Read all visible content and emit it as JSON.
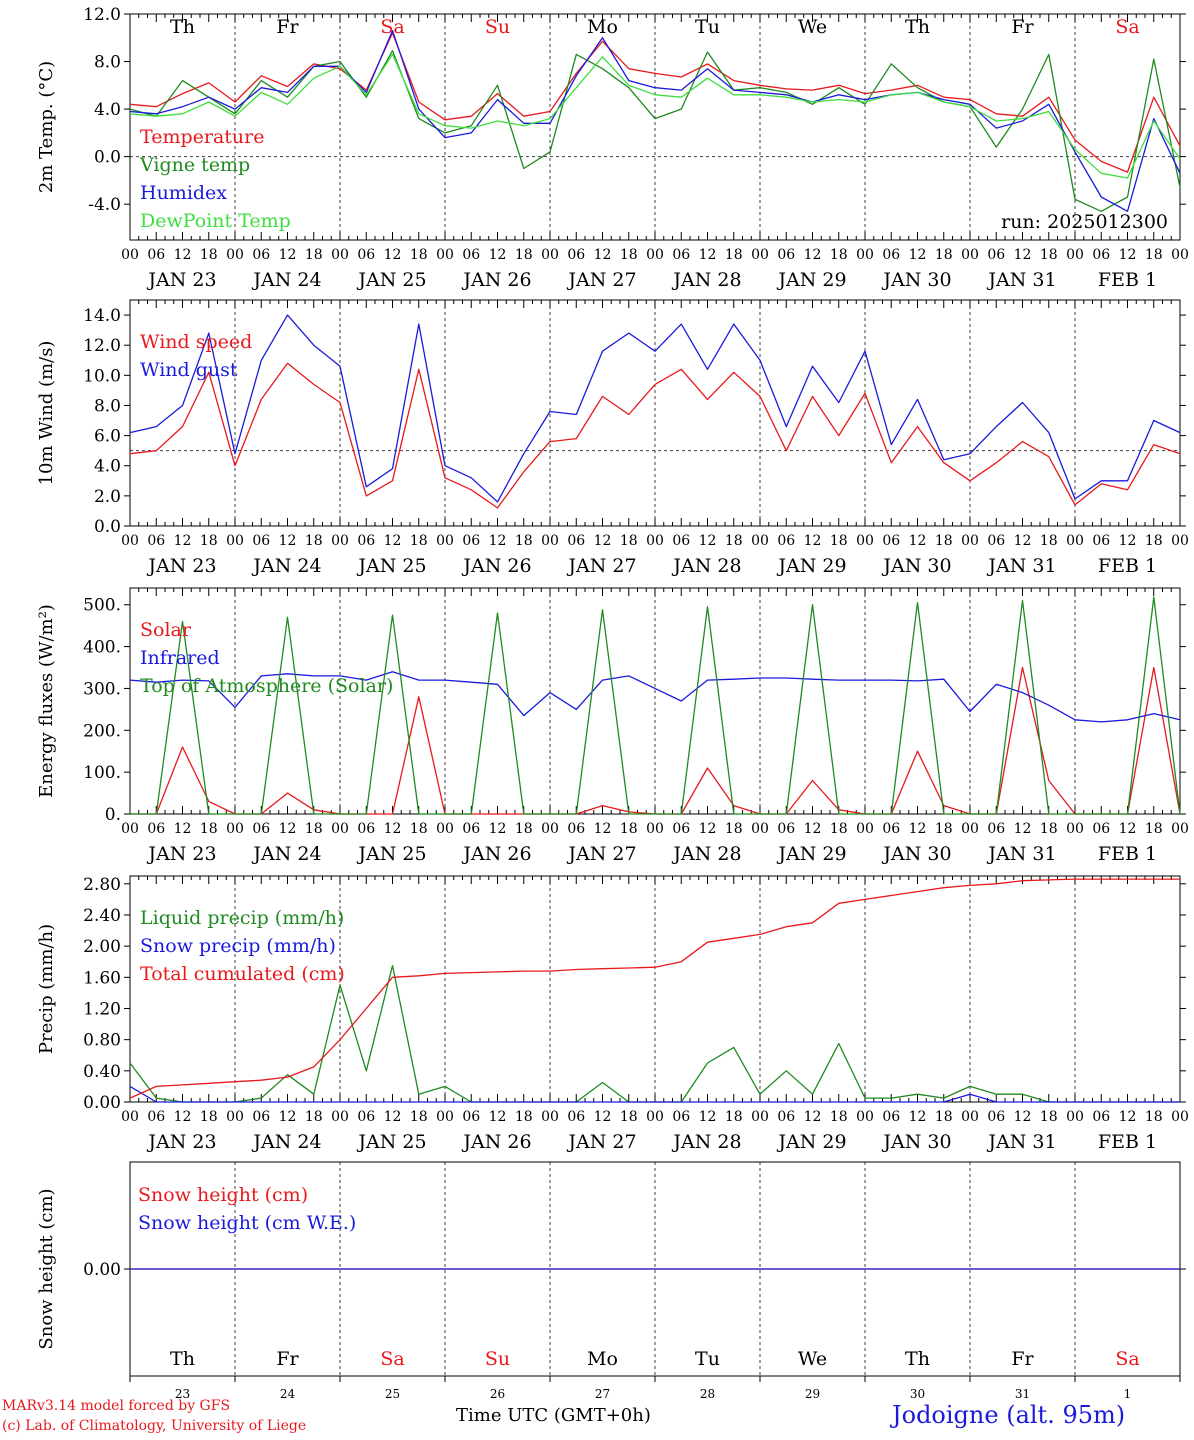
{
  "colors": {
    "red": "#e8191c",
    "green": "#1f8a1f",
    "blue": "#1a1add",
    "light_green": "#3ede3e",
    "black": "#000000"
  },
  "time_axis": {
    "hour_labels": [
      "00",
      "06",
      "12",
      "18",
      "00",
      "06",
      "12",
      "18",
      "00",
      "06",
      "12",
      "18",
      "00",
      "06",
      "12",
      "18",
      "00",
      "06",
      "12",
      "18",
      "00",
      "06",
      "12",
      "18",
      "00",
      "06",
      "12",
      "18",
      "00",
      "06",
      "12",
      "18",
      "00",
      "06",
      "12",
      "18",
      "00",
      "06",
      "12",
      "18",
      "00"
    ],
    "date_labels": [
      "JAN 23",
      "JAN 24",
      "JAN 25",
      "JAN 26",
      "JAN 27",
      "JAN 28",
      "JAN 29",
      "JAN 30",
      "JAN 31",
      "FEB  1"
    ],
    "day_names": [
      "Th",
      "Fr",
      "Sa",
      "Su",
      "Mo",
      "Tu",
      "We",
      "Th",
      "Fr",
      "Sa"
    ],
    "weekend_flags": [
      false,
      false,
      true,
      true,
      false,
      false,
      false,
      false,
      false,
      true
    ],
    "day_numbers": [
      "23",
      "24",
      "25",
      "26",
      "27",
      "28",
      "29",
      "30",
      "31",
      "1"
    ],
    "bottom_label": "Time UTC (GMT+0h)"
  },
  "chart_data": [
    {
      "type": "line",
      "ylabel": "2m Temp. (°C)",
      "ylim": [
        -5.5,
        12
      ],
      "ytick_labels": [
        "12.0",
        "8.0",
        "4.0",
        "0.0",
        "-4.0"
      ],
      "ytick_values": [
        12,
        8,
        4,
        0,
        -4
      ],
      "dashed_reference": 0,
      "annotation": "run: 2025012300",
      "x_hours": [
        0,
        6,
        12,
        18,
        24,
        30,
        36,
        42,
        48,
        54,
        60,
        66,
        72,
        78,
        84,
        90,
        96,
        102,
        108,
        114,
        120,
        126,
        132,
        138,
        144,
        150,
        156,
        162,
        168,
        174,
        180,
        186,
        192,
        198,
        204,
        210,
        216,
        222,
        228,
        234,
        240
      ],
      "series": [
        {
          "name": "Temperature",
          "color": "red",
          "values": [
            4.4,
            4.2,
            5.3,
            6.2,
            4.6,
            6.8,
            5.9,
            7.8,
            7.4,
            5.6,
            10.4,
            4.6,
            3.1,
            3.4,
            5.3,
            3.4,
            3.8,
            7.0,
            9.7,
            7.4,
            7.0,
            6.7,
            7.8,
            6.4,
            6.0,
            5.7,
            5.6,
            6.0,
            5.3,
            5.6,
            6.0,
            5.0,
            4.8,
            3.6,
            3.4,
            5.0,
            1.4,
            -0.4,
            -1.3,
            5.0,
            0.9
          ]
        },
        {
          "name": "Vigne temp",
          "color": "green",
          "values": [
            4.0,
            3.4,
            6.4,
            5.0,
            3.6,
            6.4,
            5.0,
            7.6,
            8.0,
            5.0,
            8.9,
            3.2,
            2.0,
            2.6,
            6.0,
            -1.0,
            0.4,
            8.6,
            7.4,
            5.8,
            3.2,
            4.0,
            8.8,
            5.6,
            5.8,
            5.4,
            4.4,
            5.8,
            4.4,
            7.8,
            5.8,
            4.6,
            4.2,
            0.8,
            4.0,
            8.6,
            -3.6,
            -4.6,
            -3.4,
            8.2,
            -2.6
          ]
        },
        {
          "name": "Humidex",
          "color": "blue",
          "values": [
            3.8,
            3.6,
            4.2,
            5.0,
            4.0,
            5.8,
            5.4,
            7.6,
            7.6,
            5.4,
            10.6,
            4.0,
            1.6,
            2.0,
            4.8,
            2.8,
            2.8,
            6.8,
            10.0,
            6.4,
            5.8,
            5.6,
            7.4,
            5.6,
            5.4,
            5.2,
            4.6,
            5.2,
            4.8,
            5.2,
            5.4,
            4.8,
            4.4,
            2.4,
            3.0,
            4.4,
            0.4,
            -3.4,
            -4.6,
            3.2,
            -1.4
          ]
        },
        {
          "name": "DewPoint Temp",
          "color": "light_green",
          "values": [
            3.6,
            3.4,
            3.6,
            4.6,
            3.4,
            5.4,
            4.4,
            6.6,
            7.6,
            5.2,
            8.6,
            3.6,
            2.6,
            2.4,
            3.0,
            2.6,
            3.2,
            5.8,
            8.4,
            6.0,
            5.2,
            5.0,
            6.6,
            5.2,
            5.2,
            5.0,
            4.6,
            4.8,
            4.6,
            5.2,
            5.4,
            4.6,
            4.2,
            3.0,
            3.2,
            3.8,
            0.6,
            -1.4,
            -1.8,
            3.0,
            -0.2
          ]
        }
      ]
    },
    {
      "type": "line",
      "ylabel": "10m Wind (m/s)",
      "ylim": [
        0,
        15
      ],
      "ytick_labels": [
        "14.0",
        "12.0",
        "10.0",
        "8.0",
        "6.0",
        "4.0",
        "2.0",
        "0.0"
      ],
      "ytick_values": [
        14,
        12,
        10,
        8,
        6,
        4,
        2,
        0
      ],
      "dashed_reference": 5,
      "x_hours": [
        0,
        6,
        12,
        18,
        24,
        30,
        36,
        42,
        48,
        54,
        60,
        66,
        72,
        78,
        84,
        90,
        96,
        102,
        108,
        114,
        120,
        126,
        132,
        138,
        144,
        150,
        156,
        162,
        168,
        174,
        180,
        186,
        192,
        198,
        204,
        210,
        216,
        222,
        228,
        234,
        240
      ],
      "series": [
        {
          "name": "Wind speed",
          "color": "red",
          "values": [
            4.8,
            5.0,
            6.6,
            10.2,
            4.0,
            8.4,
            10.8,
            9.4,
            8.2,
            2.0,
            3.0,
            10.4,
            3.2,
            2.4,
            1.2,
            3.6,
            5.6,
            5.8,
            8.6,
            7.4,
            9.4,
            10.4,
            8.4,
            10.2,
            8.6,
            5.0,
            8.6,
            6.0,
            8.8,
            4.2,
            6.6,
            4.2,
            3.0,
            4.2,
            5.6,
            4.6,
            1.4,
            2.8,
            2.4,
            5.4,
            4.8
          ]
        },
        {
          "name": "Wind gust",
          "color": "blue",
          "values": [
            6.2,
            6.6,
            8.0,
            12.8,
            4.8,
            11.0,
            14.0,
            12.0,
            10.6,
            2.6,
            3.8,
            13.4,
            4.0,
            3.2,
            1.6,
            4.8,
            7.6,
            7.4,
            11.6,
            12.8,
            11.6,
            13.4,
            10.4,
            13.4,
            11.0,
            6.6,
            10.6,
            8.2,
            11.6,
            5.4,
            8.4,
            4.4,
            4.8,
            6.6,
            8.2,
            6.2,
            1.8,
            3.0,
            3.0,
            7.0,
            6.2
          ]
        }
      ]
    },
    {
      "type": "line",
      "ylabel": "Energy fluxes (W/m²)",
      "ylim": [
        0,
        540
      ],
      "ytick_labels": [
        "500.",
        "400.",
        "300.",
        "200.",
        "100.",
        "0."
      ],
      "ytick_values": [
        500,
        400,
        300,
        200,
        100,
        0
      ],
      "x_hours": [
        0,
        6,
        12,
        18,
        24,
        30,
        36,
        42,
        48,
        54,
        60,
        66,
        72,
        78,
        84,
        90,
        96,
        102,
        108,
        114,
        120,
        126,
        132,
        138,
        144,
        150,
        156,
        162,
        168,
        174,
        180,
        186,
        192,
        198,
        204,
        210,
        216,
        222,
        228,
        234,
        240
      ],
      "series": [
        {
          "name": "Solar",
          "color": "red",
          "values": [
            0,
            0,
            160,
            30,
            0,
            0,
            50,
            10,
            0,
            0,
            0,
            280,
            0,
            0,
            0,
            0,
            0,
            0,
            20,
            5,
            0,
            0,
            110,
            20,
            0,
            0,
            80,
            10,
            0,
            0,
            150,
            20,
            0,
            0,
            350,
            80,
            0,
            0,
            0,
            350,
            0
          ]
        },
        {
          "name": "Infrared",
          "color": "blue",
          "values": [
            320,
            315,
            320,
            318,
            255,
            330,
            335,
            330,
            330,
            320,
            340,
            320,
            320,
            315,
            310,
            235,
            290,
            250,
            320,
            330,
            300,
            270,
            320,
            322,
            325,
            325,
            322,
            320,
            320,
            320,
            318,
            322,
            245,
            310,
            290,
            260,
            225,
            220,
            225,
            240,
            225
          ]
        },
        {
          "name": "Top of Atmosphere (Solar)",
          "color": "green",
          "values": [
            0,
            0,
            460,
            0,
            0,
            0,
            470,
            0,
            0,
            0,
            475,
            0,
            0,
            0,
            480,
            0,
            0,
            0,
            488,
            0,
            0,
            0,
            495,
            0,
            0,
            0,
            500,
            0,
            0,
            0,
            505,
            0,
            0,
            0,
            510,
            0,
            0,
            0,
            0,
            518,
            0
          ]
        }
      ]
    },
    {
      "type": "line",
      "ylabel": "Precip (mm/h)",
      "ylim": [
        0,
        2.9
      ],
      "ytick_labels": [
        "2.80",
        "2.40",
        "2.00",
        "1.60",
        "1.20",
        "0.80",
        "0.40",
        "0.00"
      ],
      "ytick_values": [
        2.8,
        2.4,
        2.0,
        1.6,
        1.2,
        0.8,
        0.4,
        0.0
      ],
      "x_hours": [
        0,
        6,
        12,
        18,
        24,
        30,
        36,
        42,
        48,
        54,
        60,
        66,
        72,
        78,
        84,
        90,
        96,
        102,
        108,
        114,
        120,
        126,
        132,
        138,
        144,
        150,
        156,
        162,
        168,
        174,
        180,
        186,
        192,
        198,
        204,
        210,
        216,
        222,
        228,
        234,
        240
      ],
      "series": [
        {
          "name": "Liquid precip (mm/h)",
          "color": "green",
          "values": [
            0.5,
            0.05,
            0,
            0,
            0,
            0.05,
            0.35,
            0.1,
            1.5,
            0.4,
            1.75,
            0.1,
            0.2,
            0,
            0,
            0,
            0,
            0,
            0.25,
            0,
            0,
            0,
            0.5,
            0.7,
            0.1,
            0.4,
            0.1,
            0.75,
            0.05,
            0.05,
            0.1,
            0.05,
            0.2,
            0.1,
            0.1,
            0,
            0,
            0,
            0,
            0,
            0
          ]
        },
        {
          "name": "Snow precip (mm/h)",
          "color": "blue",
          "values": [
            0.2,
            0,
            0,
            0,
            0,
            0,
            0,
            0,
            0,
            0,
            0,
            0,
            0,
            0,
            0,
            0,
            0,
            0,
            0,
            0,
            0,
            0,
            0,
            0,
            0,
            0,
            0,
            0,
            0,
            0,
            0,
            0,
            0.1,
            0,
            0,
            0,
            0,
            0,
            0,
            0,
            0
          ]
        },
        {
          "name": "Total cumulated (cm)",
          "color": "red",
          "values": [
            0.05,
            0.2,
            0.22,
            0.24,
            0.26,
            0.28,
            0.32,
            0.45,
            0.8,
            1.2,
            1.6,
            1.62,
            1.65,
            1.66,
            1.67,
            1.68,
            1.68,
            1.7,
            1.71,
            1.72,
            1.73,
            1.8,
            2.05,
            2.1,
            2.15,
            2.25,
            2.3,
            2.55,
            2.6,
            2.65,
            2.7,
            2.75,
            2.78,
            2.8,
            2.84,
            2.85,
            2.86,
            2.86,
            2.86,
            2.86,
            2.86
          ]
        }
      ]
    },
    {
      "type": "line",
      "ylabel": "Snow height (cm)",
      "ylim": [
        -1,
        1
      ],
      "ytick_labels": [
        "0.00"
      ],
      "ytick_values": [
        0
      ],
      "x_hours": [
        0,
        240
      ],
      "series": [
        {
          "name": "Snow height (cm)",
          "color": "red",
          "values": [
            0,
            0
          ]
        },
        {
          "name": "Snow height (cm W.E.)",
          "color": "blue",
          "values": [
            0,
            0
          ]
        }
      ]
    }
  ],
  "footer": {
    "credit_line1": "MARv3.14 model forced by GFS",
    "credit_line2": "(c) Lab. of Climatology, University of Liege",
    "time_label": "Time UTC (GMT+0h)",
    "location": "Jodoigne (alt. 95m)"
  }
}
